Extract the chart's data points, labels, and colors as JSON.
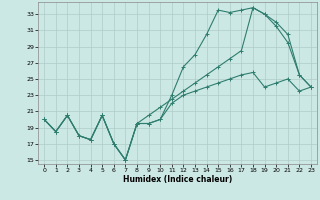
{
  "xlabel": "Humidex (Indice chaleur)",
  "ylabel": "",
  "bg_color": "#cce8e4",
  "line_color": "#2e7d6e",
  "grid_color": "#b0ccc8",
  "xlim": [
    -0.5,
    23.5
  ],
  "ylim": [
    14.5,
    34.5
  ],
  "yticks": [
    15,
    17,
    19,
    21,
    23,
    25,
    27,
    29,
    31,
    33
  ],
  "xticks": [
    0,
    1,
    2,
    3,
    4,
    5,
    6,
    7,
    8,
    9,
    10,
    11,
    12,
    13,
    14,
    15,
    16,
    17,
    18,
    19,
    20,
    21,
    22,
    23
  ],
  "line1_x": [
    0,
    1,
    2,
    3,
    4,
    5,
    6,
    7,
    8,
    9,
    10,
    11,
    12,
    13,
    14,
    15,
    16,
    17,
    18,
    19,
    20,
    21,
    22,
    23
  ],
  "line1_y": [
    20.0,
    18.5,
    20.5,
    18.0,
    17.5,
    20.5,
    17.0,
    15.0,
    19.5,
    19.5,
    20.0,
    22.0,
    23.0,
    23.5,
    24.0,
    24.5,
    25.0,
    25.5,
    25.8,
    24.0,
    24.5,
    25.0,
    23.5,
    24.0
  ],
  "line2_x": [
    0,
    1,
    2,
    3,
    4,
    5,
    6,
    7,
    8,
    9,
    10,
    11,
    12,
    13,
    14,
    15,
    16,
    17,
    18,
    19,
    20,
    21,
    22,
    23
  ],
  "line2_y": [
    20.0,
    18.5,
    20.5,
    18.0,
    17.5,
    20.5,
    17.0,
    15.0,
    19.5,
    19.5,
    20.0,
    23.0,
    26.5,
    28.0,
    30.5,
    33.5,
    33.2,
    33.5,
    33.8,
    33.0,
    32.0,
    30.5,
    25.5,
    24.0
  ],
  "line3_x": [
    0,
    1,
    2,
    3,
    4,
    5,
    6,
    7,
    8,
    9,
    10,
    11,
    12,
    13,
    14,
    15,
    16,
    17,
    18,
    19,
    20,
    21,
    22,
    23
  ],
  "line3_y": [
    20.0,
    18.5,
    20.5,
    18.0,
    17.5,
    20.5,
    17.0,
    15.0,
    19.5,
    20.5,
    21.5,
    22.5,
    23.5,
    24.5,
    25.5,
    26.5,
    27.5,
    28.5,
    33.8,
    33.0,
    31.5,
    29.5,
    25.5,
    24.0
  ]
}
